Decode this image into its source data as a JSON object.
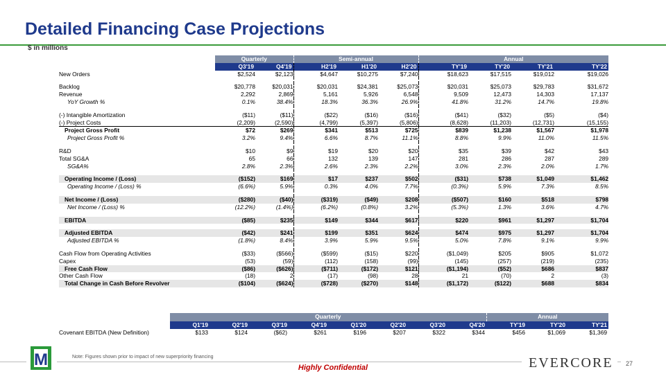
{
  "page": {
    "title": "Detailed Financing Case Projections",
    "subtitle": "$ in millions",
    "note": "Note: Figures shown prior to impact of new superpriority financing",
    "confidential": "Highly Confidential",
    "brand": "Evercore",
    "page_number": "27",
    "logo_letter": "M"
  },
  "fin_table": {
    "groups": [
      "Quarterly",
      "Semi-annual",
      "Annual"
    ],
    "columns": [
      "Q3'19",
      "Q4'19",
      "H2'19",
      "H1'20",
      "H2'20",
      "TY'19",
      "TY'20",
      "TY'21",
      "TY'22"
    ],
    "rows": [
      {
        "label": "New Orders",
        "values": [
          "$2,524",
          "$2,123",
          "$4,647",
          "$10,275",
          "$7,240",
          "$18,623",
          "$17,515",
          "$19,012",
          "$19,026"
        ]
      },
      {
        "label": "Backlog",
        "values": [
          "$20,778",
          "$20,031",
          "$20,031",
          "$24,381",
          "$25,073",
          "$20,031",
          "$25,073",
          "$29,783",
          "$31,672"
        ]
      },
      {
        "label": "Revenue",
        "values": [
          "2,292",
          "2,869",
          "5,161",
          "5,926",
          "6,548",
          "9,509",
          "12,473",
          "14,303",
          "17,137"
        ]
      },
      {
        "label": "YoY Growth %",
        "values": [
          "0.1%",
          "38.4%",
          "18.3%",
          "36.3%",
          "26.9%",
          "41.8%",
          "31.2%",
          "14.7%",
          "19.8%"
        ]
      },
      {
        "label": "(-) Intangible Amortization",
        "values": [
          "($11)",
          "($11)",
          "($22)",
          "($16)",
          "($16)",
          "($41)",
          "($32)",
          "($5)",
          "($4)"
        ]
      },
      {
        "label": "(-) Project Costs",
        "values": [
          "(2,209)",
          "(2,590)",
          "(4,799)",
          "(5,397)",
          "(5,806)",
          "(8,628)",
          "(11,203)",
          "(12,731)",
          "(15,155)"
        ]
      },
      {
        "label": "Project Gross Profit",
        "values": [
          "$72",
          "$269",
          "$341",
          "$513",
          "$725",
          "$839",
          "$1,238",
          "$1,567",
          "$1,978"
        ]
      },
      {
        "label": "Project Gross Profit %",
        "values": [
          "3.2%",
          "9.4%",
          "6.6%",
          "8.7%",
          "11.1%",
          "8.8%",
          "9.9%",
          "11.0%",
          "11.5%"
        ]
      },
      {
        "label": "R&D",
        "values": [
          "$10",
          "$9",
          "$19",
          "$20",
          "$20",
          "$35",
          "$39",
          "$42",
          "$43"
        ]
      },
      {
        "label": "Total SG&A",
        "values": [
          "65",
          "66",
          "132",
          "139",
          "147",
          "281",
          "286",
          "287",
          "289"
        ]
      },
      {
        "label": "SG&A%",
        "values": [
          "2.8%",
          "2.3%",
          "2.6%",
          "2.3%",
          "2.2%",
          "3.0%",
          "2.3%",
          "2.0%",
          "1.7%"
        ]
      },
      {
        "label": "Operating Income / (Loss)",
        "values": [
          "($152)",
          "$169",
          "$17",
          "$237",
          "$502",
          "($31)",
          "$738",
          "$1,049",
          "$1,462"
        ]
      },
      {
        "label": "Operating Income / (Loss) %",
        "values": [
          "(6.6%)",
          "5.9%",
          "0.3%",
          "4.0%",
          "7.7%",
          "(0.3%)",
          "5.9%",
          "7.3%",
          "8.5%"
        ]
      },
      {
        "label": "Net Income / (Loss)",
        "values": [
          "($280)",
          "($40)",
          "($319)",
          "($49)",
          "$208",
          "($507)",
          "$160",
          "$518",
          "$798"
        ]
      },
      {
        "label": "Net Income / (Loss) %",
        "values": [
          "(12.2%)",
          "(1.4%)",
          "(6.2%)",
          "(0.8%)",
          "3.2%",
          "(5.3%)",
          "1.3%",
          "3.6%",
          "4.7%"
        ]
      },
      {
        "label": "EBITDA",
        "values": [
          "($85)",
          "$235",
          "$149",
          "$344",
          "$617",
          "$220",
          "$961",
          "$1,297",
          "$1,704"
        ]
      },
      {
        "label": "Adjusted EBITDA",
        "values": [
          "($42)",
          "$241",
          "$199",
          "$351",
          "$624",
          "$474",
          "$975",
          "$1,297",
          "$1,704"
        ]
      },
      {
        "label": "Adjusted EBITDA %",
        "values": [
          "(1.8%)",
          "8.4%",
          "3.9%",
          "5.9%",
          "9.5%",
          "5.0%",
          "7.8%",
          "9.1%",
          "9.9%"
        ]
      },
      {
        "label": "Cash Flow from Operating Activities",
        "values": [
          "($33)",
          "($566)",
          "($599)",
          "($15)",
          "$220",
          "($1,049)",
          "$205",
          "$905",
          "$1,072"
        ]
      },
      {
        "label": "Capex",
        "values": [
          "(53)",
          "(59)",
          "(112)",
          "(158)",
          "(99)",
          "(145)",
          "(257)",
          "(219)",
          "(235)"
        ]
      },
      {
        "label": "Free Cash Flow",
        "values": [
          "($86)",
          "($626)",
          "($711)",
          "($172)",
          "$121",
          "($1,194)",
          "($52)",
          "$686",
          "$837"
        ]
      },
      {
        "label": "Other Cash Flow",
        "values": [
          "(18)",
          "2",
          "(17)",
          "(98)",
          "28",
          "21",
          "(70)",
          "2",
          "(3)"
        ]
      },
      {
        "label": "Total Change in Cash Before Revolver",
        "values": [
          "($104)",
          "($624)",
          "($728)",
          "($270)",
          "$148",
          "($1,172)",
          "($122)",
          "$688",
          "$834"
        ]
      }
    ]
  },
  "covenant_table": {
    "groups": [
      "Quarterly",
      "Annual"
    ],
    "columns": [
      "Q1'19",
      "Q2'19",
      "Q3'19",
      "Q4'19",
      "Q1'20",
      "Q2'20",
      "Q3'20",
      "Q4'20",
      "TY'19",
      "TY'20",
      "TY'21"
    ],
    "rows": [
      {
        "label": "Covenant EBITDA (New Definition)",
        "values": [
          "$133",
          "$124",
          "($62)",
          "$261",
          "$196",
          "$207",
          "$322",
          "$344",
          "$456",
          "$1,069",
          "$1,369"
        ]
      }
    ]
  }
}
